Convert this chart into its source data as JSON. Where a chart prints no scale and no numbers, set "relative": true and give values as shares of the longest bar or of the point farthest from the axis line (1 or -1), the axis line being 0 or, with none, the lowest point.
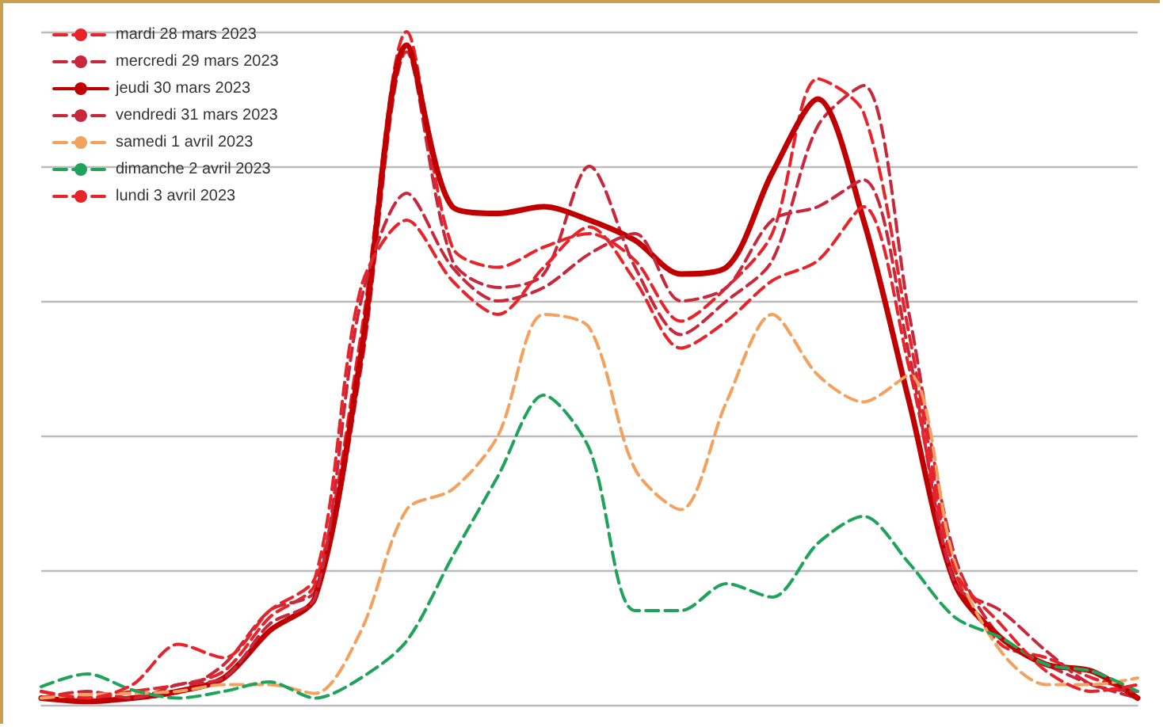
{
  "chart_data": {
    "type": "line",
    "relative": true,
    "grid": "y",
    "legend": "top left",
    "marker": "none",
    "tick_labels": false,
    "categories": [
      null,
      null,
      null,
      null,
      null,
      null,
      null,
      null,
      null,
      null,
      null,
      null,
      null,
      null,
      null,
      null,
      null,
      null,
      null,
      null,
      null,
      null,
      null,
      null,
      null
    ],
    "series": [
      {
        "name": "mardi 28 mars 2023",
        "color": "#e8242a",
        "line_style": "dashed",
        "values": [
          0.01,
          0.01,
          0.02,
          0.03,
          0.05,
          0.13,
          0.18,
          0.55,
          1.0,
          0.68,
          0.65,
          0.68,
          0.7,
          0.66,
          0.57,
          0.62,
          0.7,
          0.93,
          0.88,
          0.55,
          0.2,
          0.09,
          0.07,
          0.04,
          0.02
        ]
      },
      {
        "name": "mercredi 29 mars 2023",
        "color": "#c8283c",
        "line_style": "dashed",
        "values": [
          0.02,
          0.01,
          0.01,
          0.02,
          0.06,
          0.14,
          0.17,
          0.5,
          0.97,
          0.66,
          0.62,
          0.64,
          0.8,
          0.65,
          0.55,
          0.6,
          0.66,
          0.86,
          0.92,
          0.58,
          0.22,
          0.1,
          0.06,
          0.03,
          0.01
        ]
      },
      {
        "name": "jeudi 30 mars 2023",
        "color": "#c00000",
        "line_style": "solid",
        "values": [
          0.01,
          0.005,
          0.01,
          0.02,
          0.04,
          0.11,
          0.16,
          0.52,
          0.98,
          0.74,
          0.73,
          0.74,
          0.72,
          0.69,
          0.64,
          0.65,
          0.79,
          0.9,
          0.72,
          0.45,
          0.18,
          0.1,
          0.06,
          0.05,
          0.01
        ]
      },
      {
        "name": "vendredi 31 mars 2023",
        "color": "#c8283c",
        "line_style": "dashed",
        "values": [
          0.01,
          0.02,
          0.01,
          0.03,
          0.04,
          0.12,
          0.16,
          0.6,
          0.76,
          0.65,
          0.6,
          0.62,
          0.67,
          0.7,
          0.6,
          0.62,
          0.72,
          0.74,
          0.78,
          0.52,
          0.18,
          0.14,
          0.08,
          0.03,
          0.02
        ]
      },
      {
        "name": "samedi 1 avril 2023",
        "color": "#f4a15d",
        "line_style": "dashed",
        "values": [
          0.01,
          0.015,
          0.017,
          0.02,
          0.03,
          0.03,
          0.017,
          0.11,
          0.29,
          0.32,
          0.4,
          0.58,
          0.56,
          0.35,
          0.29,
          0.45,
          0.58,
          0.49,
          0.45,
          0.49,
          0.21,
          0.08,
          0.03,
          0.03,
          0.04
        ]
      },
      {
        "name": "dimanche 2 avril 2023",
        "color": "#1fa35b",
        "line_style": "dashed",
        "values": [
          0.027,
          0.046,
          0.022,
          0.01,
          0.02,
          0.034,
          0.01,
          0.04,
          0.095,
          0.22,
          0.34,
          0.46,
          0.38,
          0.14,
          0.14,
          0.18,
          0.16,
          0.24,
          0.28,
          0.21,
          0.13,
          0.1,
          0.06,
          0.05,
          0.02
        ]
      },
      {
        "name": "lundi 3 avril 2023",
        "color": "#e8242a",
        "line_style": "dashed",
        "values": [
          0.02,
          0.01,
          0.03,
          0.09,
          0.07,
          0.14,
          0.19,
          0.62,
          0.72,
          0.63,
          0.58,
          0.65,
          0.71,
          0.63,
          0.53,
          0.57,
          0.63,
          0.66,
          0.74,
          0.5,
          0.2,
          0.12,
          0.05,
          0.02,
          0.03
        ]
      }
    ]
  }
}
